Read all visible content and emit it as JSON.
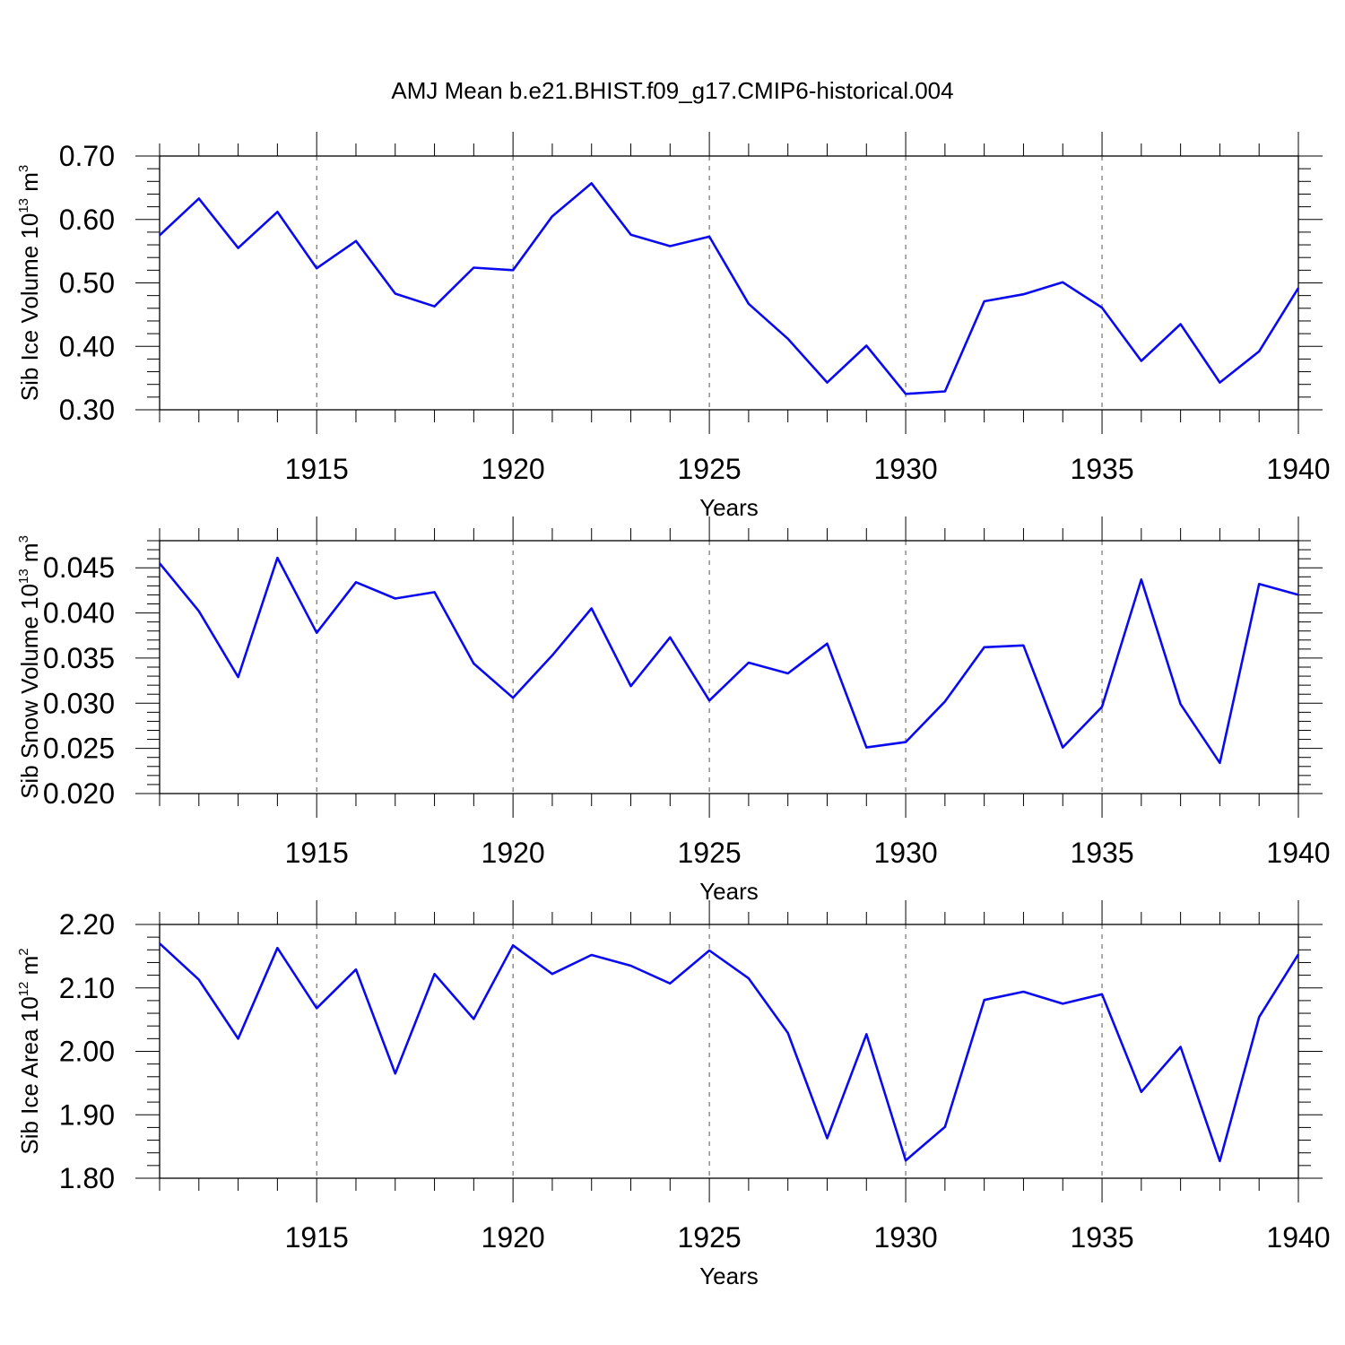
{
  "figure_title": "AMJ Mean b.e21.BHIST.f09_g17.CMIP6-historical.004",
  "colors": {
    "line": "#0a0af0",
    "axis": "#000000",
    "grid": "#555555"
  },
  "chart_data": [
    {
      "type": "line",
      "ylabel_main": "Sib Ice Volume 10",
      "ylabel_exp": "13",
      "ylabel_unit": " m",
      "ylabel_unit_exp": "3",
      "xlabel": "Years",
      "xlim": [
        1911,
        1940
      ],
      "ylim": [
        0.3,
        0.7
      ],
      "xticks": [
        1915,
        1920,
        1925,
        1930,
        1935,
        1940
      ],
      "xtick_labels": [
        "1915",
        "1920",
        "1925",
        "1930",
        "1935",
        "1940"
      ],
      "yticks": [
        0.3,
        0.4,
        0.5,
        0.6,
        0.7
      ],
      "ytick_labels": [
        "0.30",
        "0.40",
        "0.50",
        "0.60",
        "0.70"
      ],
      "series": [
        {
          "name": "Sib Ice Volume",
          "x": [
            1911,
            1912,
            1913,
            1914,
            1915,
            1916,
            1917,
            1918,
            1919,
            1920,
            1921,
            1922,
            1923,
            1924,
            1925,
            1926,
            1927,
            1928,
            1929,
            1930,
            1931,
            1932,
            1933,
            1934,
            1935,
            1936,
            1937,
            1938,
            1939,
            1940
          ],
          "values": [
            0.575,
            0.633,
            0.555,
            0.612,
            0.523,
            0.566,
            0.483,
            0.463,
            0.524,
            0.52,
            0.605,
            0.657,
            0.576,
            0.558,
            0.573,
            0.467,
            0.412,
            0.343,
            0.401,
            0.325,
            0.329,
            0.471,
            0.482,
            0.501,
            0.461,
            0.377,
            0.435,
            0.343,
            0.392,
            0.492
          ]
        }
      ]
    },
    {
      "type": "line",
      "ylabel_main": "Sib Snow Volume 10",
      "ylabel_exp": "13",
      "ylabel_unit": " m",
      "ylabel_unit_exp": "3",
      "xlabel": "Years",
      "xlim": [
        1911,
        1940
      ],
      "ylim": [
        0.02,
        0.048
      ],
      "xticks": [
        1915,
        1920,
        1925,
        1930,
        1935,
        1940
      ],
      "xtick_labels": [
        "1915",
        "1920",
        "1925",
        "1930",
        "1935",
        "1940"
      ],
      "yticks": [
        0.02,
        0.025,
        0.03,
        0.035,
        0.04,
        0.045
      ],
      "ytick_labels": [
        "0.020",
        "0.025",
        "0.030",
        "0.035",
        "0.040",
        "0.045"
      ],
      "series": [
        {
          "name": "Sib Snow Volume",
          "x": [
            1911,
            1912,
            1913,
            1914,
            1915,
            1916,
            1917,
            1918,
            1919,
            1920,
            1921,
            1922,
            1923,
            1924,
            1925,
            1926,
            1927,
            1928,
            1929,
            1930,
            1931,
            1932,
            1933,
            1934,
            1935,
            1936,
            1937,
            1938,
            1939,
            1940
          ],
          "values": [
            0.0455,
            0.0402,
            0.0329,
            0.0461,
            0.0378,
            0.0434,
            0.0416,
            0.0423,
            0.0344,
            0.0306,
            0.0353,
            0.0405,
            0.0319,
            0.0373,
            0.0303,
            0.0345,
            0.0333,
            0.0366,
            0.0251,
            0.0257,
            0.0302,
            0.0362,
            0.0364,
            0.0251,
            0.0296,
            0.0437,
            0.0299,
            0.0234,
            0.0432,
            0.042
          ]
        }
      ]
    },
    {
      "type": "line",
      "ylabel_main": "Sib Ice Area 10",
      "ylabel_exp": "12",
      "ylabel_unit": " m",
      "ylabel_unit_exp": "2",
      "xlabel": "Years",
      "xlim": [
        1911,
        1940
      ],
      "ylim": [
        1.8,
        2.2
      ],
      "xticks": [
        1915,
        1920,
        1925,
        1930,
        1935,
        1940
      ],
      "xtick_labels": [
        "1915",
        "1920",
        "1925",
        "1930",
        "1935",
        "1940"
      ],
      "yticks": [
        1.8,
        1.9,
        2.0,
        2.1,
        2.2
      ],
      "ytick_labels": [
        "1.80",
        "1.90",
        "2.00",
        "2.10",
        "2.20"
      ],
      "series": [
        {
          "name": "Sib Ice Area",
          "x": [
            1911,
            1912,
            1913,
            1914,
            1915,
            1916,
            1917,
            1918,
            1919,
            1920,
            1921,
            1922,
            1923,
            1924,
            1925,
            1926,
            1927,
            1928,
            1929,
            1930,
            1931,
            1932,
            1933,
            1934,
            1935,
            1936,
            1937,
            1938,
            1939,
            1940
          ],
          "values": [
            2.17,
            2.113,
            2.02,
            2.163,
            2.068,
            2.129,
            1.965,
            2.122,
            2.051,
            2.167,
            2.122,
            2.152,
            2.135,
            2.107,
            2.159,
            2.115,
            2.029,
            1.863,
            2.027,
            1.828,
            1.881,
            2.081,
            2.094,
            2.075,
            2.09,
            1.936,
            2.007,
            1.827,
            2.054,
            2.153
          ]
        }
      ]
    }
  ]
}
